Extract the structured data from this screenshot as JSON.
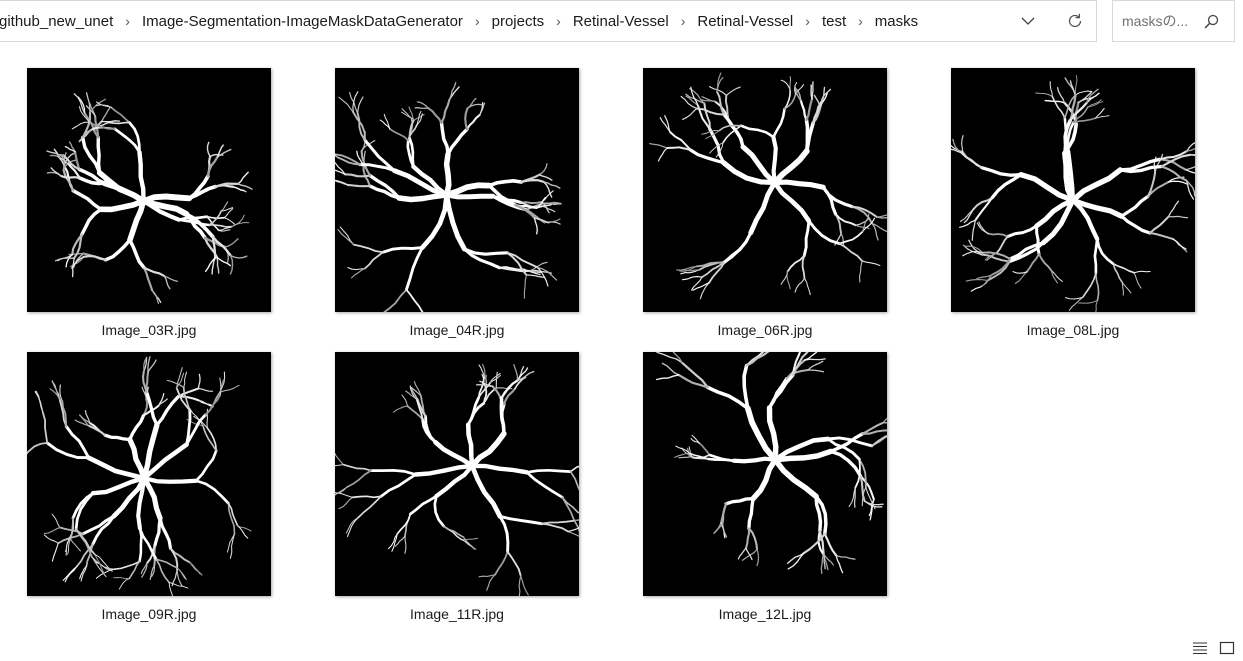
{
  "address_bar": {
    "breadcrumbs": [
      "github_new_unet",
      "Image-Segmentation-ImageMaskDataGenerator",
      "projects",
      "Retinal-Vessel",
      "Retinal-Vessel",
      "test",
      "masks"
    ]
  },
  "search": {
    "placeholder": "masksの..."
  },
  "files": [
    {
      "name": "Image_03R.jpg"
    },
    {
      "name": "Image_04R.jpg"
    },
    {
      "name": "Image_06R.jpg"
    },
    {
      "name": "Image_08L.jpg"
    },
    {
      "name": "Image_09R.jpg"
    },
    {
      "name": "Image_11R.jpg"
    },
    {
      "name": "Image_12L.jpg"
    }
  ],
  "icons": {
    "dropdown": "chevron-down-icon",
    "refresh": "refresh-icon",
    "search": "search-icon",
    "details_view": "details-view-icon",
    "large_icons_view": "large-icons-view-icon"
  },
  "colors": {
    "thumbnail_background": "#000000",
    "vessel": "#ffffff",
    "border": "#d9d9d9"
  }
}
